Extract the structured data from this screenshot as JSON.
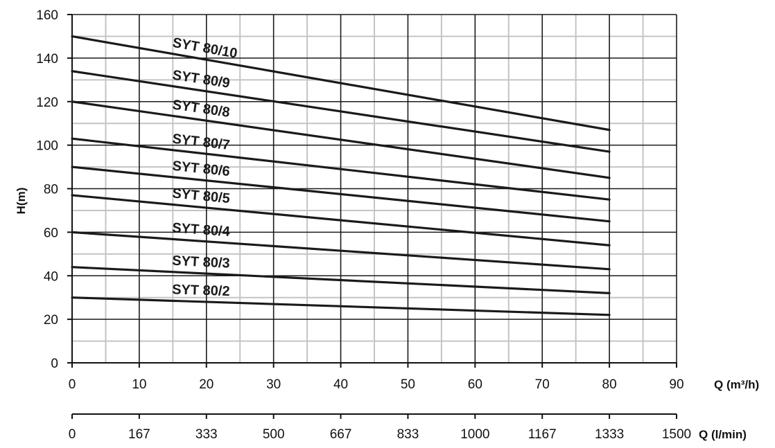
{
  "chart_data": {
    "type": "line",
    "ylabel": "H(m)",
    "xlabel": "Q (m³/h)",
    "x2label": "Q (l/min)",
    "xlim": [
      0,
      90
    ],
    "ylim": [
      0,
      160
    ],
    "grid": true,
    "x_ticks": [
      0,
      10,
      20,
      30,
      40,
      50,
      60,
      70,
      80,
      90
    ],
    "x_tick_labels": [
      "0",
      "10",
      "20",
      "30",
      "40",
      "50",
      "60",
      "70",
      "80",
      "90"
    ],
    "x2_tick_labels": [
      "0",
      "167",
      "333",
      "500",
      "667",
      "833",
      "1000",
      "1167",
      "1333",
      "1500"
    ],
    "y_ticks": [
      0,
      20,
      40,
      60,
      80,
      100,
      120,
      140,
      160
    ],
    "y_tick_labels": [
      "0",
      "20",
      "40",
      "60",
      "80",
      "100",
      "120",
      "140",
      "160"
    ],
    "series": [
      {
        "name": "SYT 80/10",
        "x": [
          0,
          80
        ],
        "y": [
          150,
          107
        ]
      },
      {
        "name": "SYT 80/9",
        "x": [
          0,
          80
        ],
        "y": [
          134,
          97
        ]
      },
      {
        "name": "SYT 80/8",
        "x": [
          0,
          80
        ],
        "y": [
          120,
          85
        ]
      },
      {
        "name": "SYT 80/7",
        "x": [
          0,
          80
        ],
        "y": [
          103,
          75
        ]
      },
      {
        "name": "SYT 80/6",
        "x": [
          0,
          80
        ],
        "y": [
          90,
          65
        ]
      },
      {
        "name": "SYT 80/5",
        "x": [
          0,
          80
        ],
        "y": [
          77,
          54
        ]
      },
      {
        "name": "SYT 80/4",
        "x": [
          0,
          80
        ],
        "y": [
          60,
          43
        ]
      },
      {
        "name": "SYT 80/3",
        "x": [
          0,
          80
        ],
        "y": [
          44,
          32
        ]
      },
      {
        "name": "SYT 80/2",
        "x": [
          0,
          80
        ],
        "y": [
          30,
          22
        ]
      }
    ]
  }
}
